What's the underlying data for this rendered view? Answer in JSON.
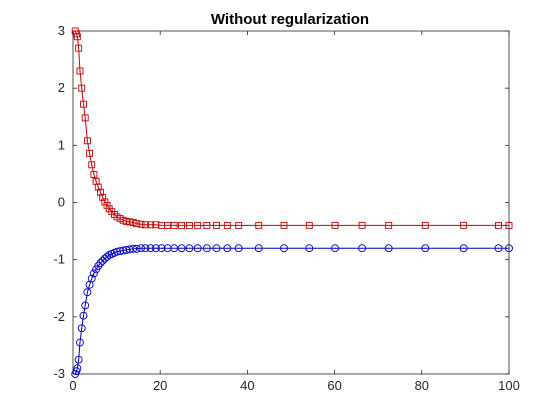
{
  "chart_data": {
    "type": "line",
    "title": "Without regularization",
    "xlabel": "",
    "ylabel": "",
    "xlim": [
      0,
      100
    ],
    "ylim": [
      -3,
      3
    ],
    "xticks": [
      0,
      20,
      40,
      60,
      80,
      100
    ],
    "yticks": [
      -3,
      -2,
      -1,
      0,
      1,
      2,
      3
    ],
    "grid": false,
    "legend": "none",
    "series": [
      {
        "color": "#cc0000",
        "marker": "square",
        "x": [
          0.5,
          0.8,
          1.0,
          1.3,
          1.6,
          2.0,
          2.4,
          2.8,
          3.3,
          3.8,
          4.3,
          4.8,
          5.3,
          5.8,
          6.3,
          6.8,
          7.3,
          7.8,
          8.3,
          8.9,
          9.5,
          10.1,
          10.8,
          11.5,
          12.2,
          13.0,
          13.8,
          14.6,
          15.6,
          16.6,
          17.8,
          19.0,
          20.3,
          21.7,
          23.2,
          24.9,
          26.7,
          28.6,
          30.7,
          32.9,
          35.4,
          38.0,
          42.6,
          48.4,
          54.2,
          60.1,
          66.3,
          72.4,
          80.8,
          89.6,
          97.6,
          100.0
        ],
        "y": [
          3.0,
          2.95,
          2.9,
          2.7,
          2.3,
          2.0,
          1.72,
          1.48,
          1.08,
          0.86,
          0.66,
          0.49,
          0.37,
          0.27,
          0.18,
          0.09,
          0.01,
          -0.05,
          -0.11,
          -0.16,
          -0.21,
          -0.25,
          -0.28,
          -0.31,
          -0.33,
          -0.34,
          -0.35,
          -0.37,
          -0.38,
          -0.39,
          -0.39,
          -0.39,
          -0.4,
          -0.4,
          -0.4,
          -0.4,
          -0.4,
          -0.4,
          -0.4,
          -0.4,
          -0.4,
          -0.4,
          -0.4,
          -0.4,
          -0.4,
          -0.4,
          -0.4,
          -0.4,
          -0.4,
          -0.4,
          -0.4,
          -0.4
        ]
      },
      {
        "color": "#0000cc",
        "marker": "circle",
        "x": [
          0.5,
          0.8,
          1.0,
          1.3,
          1.6,
          2.0,
          2.4,
          2.8,
          3.3,
          3.8,
          4.3,
          4.8,
          5.3,
          5.8,
          6.3,
          6.8,
          7.3,
          7.8,
          8.3,
          8.9,
          9.5,
          10.1,
          10.8,
          11.5,
          12.2,
          13.0,
          13.8,
          14.6,
          15.6,
          16.6,
          17.8,
          19.0,
          20.3,
          21.7,
          23.2,
          24.9,
          26.7,
          28.6,
          30.7,
          32.9,
          35.4,
          38.0,
          42.6,
          48.4,
          54.2,
          60.1,
          66.3,
          72.4,
          80.8,
          89.6,
          97.6,
          100.0
        ],
        "y": [
          -3.0,
          -2.95,
          -2.9,
          -2.75,
          -2.45,
          -2.2,
          -1.98,
          -1.8,
          -1.57,
          -1.44,
          -1.33,
          -1.24,
          -1.17,
          -1.11,
          -1.06,
          -1.02,
          -0.98,
          -0.95,
          -0.92,
          -0.9,
          -0.88,
          -0.86,
          -0.85,
          -0.84,
          -0.83,
          -0.82,
          -0.81,
          -0.81,
          -0.8,
          -0.8,
          -0.8,
          -0.8,
          -0.8,
          -0.8,
          -0.8,
          -0.8,
          -0.8,
          -0.8,
          -0.8,
          -0.8,
          -0.8,
          -0.8,
          -0.8,
          -0.8,
          -0.8,
          -0.8,
          -0.8,
          -0.8,
          -0.8,
          -0.8,
          -0.8,
          -0.8
        ]
      }
    ]
  }
}
